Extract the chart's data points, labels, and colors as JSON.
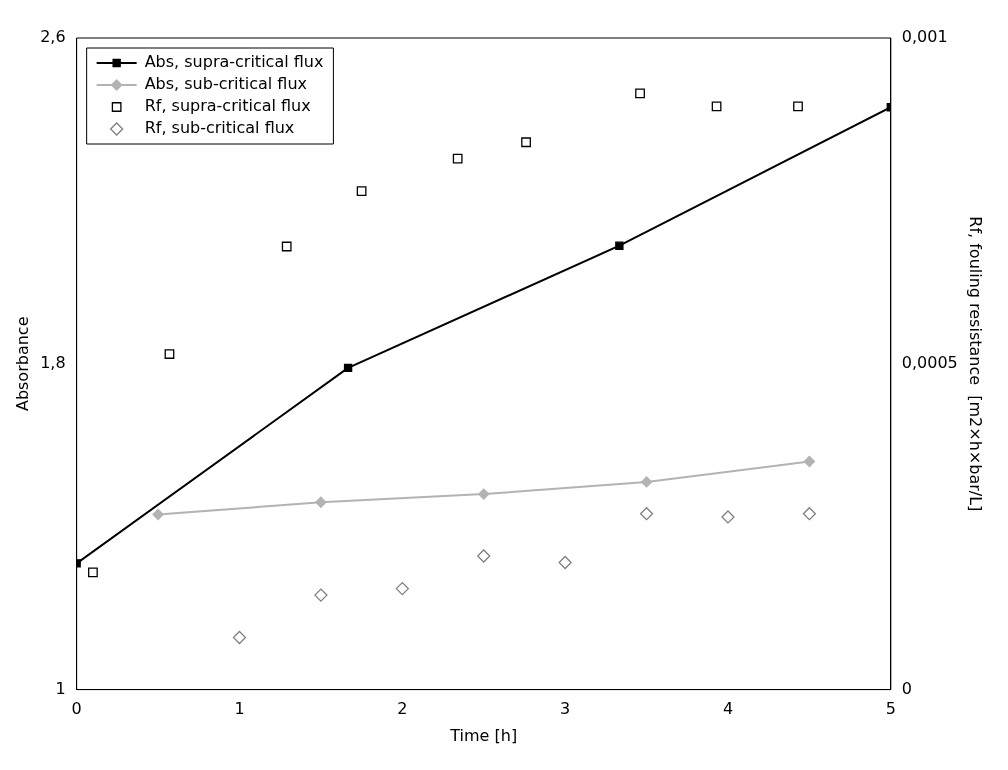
{
  "chart_data": {
    "type": "line",
    "xlabel": "Time [h]",
    "ylabel": "Absorbance",
    "y2label": "Rf, fouling resistance  [m2×h×bar/L]",
    "xlim": [
      0,
      5
    ],
    "xticks": [
      0,
      1,
      2,
      3,
      4,
      5
    ],
    "ylim": [
      1,
      2.6
    ],
    "yticks": [
      1,
      {
        "value": 1.8,
        "label": "1,8"
      },
      {
        "value": 2.6,
        "label": "2,6"
      }
    ],
    "y2lim": [
      0,
      0.001
    ],
    "y2ticks": [
      0,
      {
        "value": 0.0005,
        "label": "0,0005"
      },
      {
        "value": 0.001,
        "label": "0,001"
      }
    ],
    "grid": false,
    "legend": "top left",
    "series": [
      {
        "name": "Abs, supra-critical flux",
        "type": "line",
        "marker": "square",
        "color": "#000000",
        "x": [
          0,
          1.667,
          3.333,
          5
        ],
        "values": [
          1.31,
          1.79,
          2.09,
          2.43
        ]
      },
      {
        "name": "Abs, sub-critical flux",
        "type": "line",
        "marker": "diamond",
        "color": "#b3b3b3",
        "x": [
          0.5,
          1.5,
          2.5,
          3.5,
          4.5
        ],
        "values": [
          1.43,
          1.46,
          1.48,
          1.51,
          1.56
        ]
      },
      {
        "name": "Rf, supra-critical flux",
        "type": "scatter",
        "marker": "square",
        "axis": "y2",
        "color": "#000000",
        "x": [
          0.1,
          0.57,
          1.29,
          1.75,
          2.34,
          2.76,
          3.46,
          3.93,
          4.43
        ],
        "values": [
          0.00018,
          0.000515,
          0.00068,
          0.000765,
          0.000815,
          0.00084,
          0.000915,
          0.000895,
          0.000895
        ]
      },
      {
        "name": "Rf, sub-critical flux",
        "type": "scatter",
        "marker": "diamond",
        "axis": "y2",
        "color": "#808080",
        "x": [
          1,
          1.5,
          2,
          2.5,
          3,
          3.5,
          4,
          4.5
        ],
        "values": [
          8e-05,
          0.000145,
          0.000155,
          0.000205,
          0.000195,
          0.00027,
          0.000265,
          0.00027
        ]
      }
    ]
  }
}
